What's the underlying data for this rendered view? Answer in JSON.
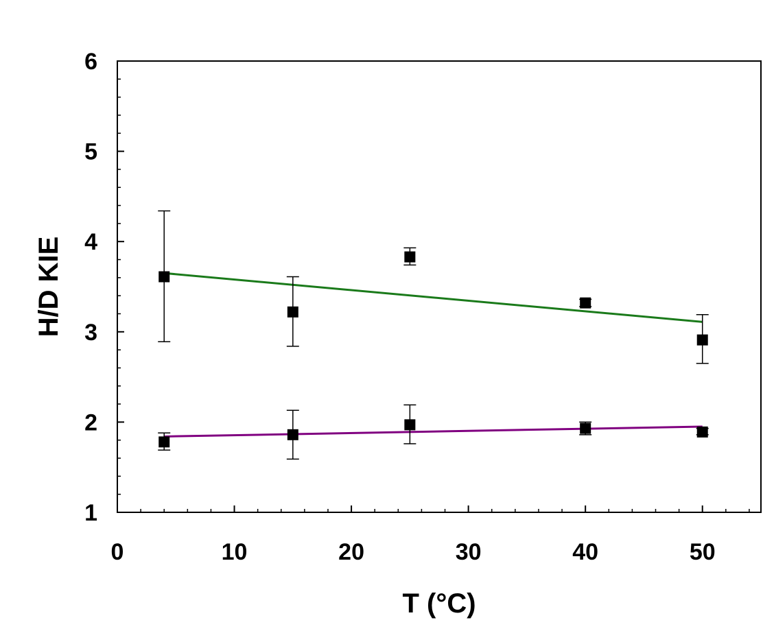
{
  "chart_data": {
    "type": "scatter",
    "xlabel": "T (°C)",
    "ylabel": "H/D KIE",
    "xlim": [
      0,
      55
    ],
    "ylim": [
      1,
      6
    ],
    "x_ticks": [
      0,
      10,
      20,
      30,
      40,
      50
    ],
    "y_ticks": [
      1,
      2,
      3,
      4,
      5,
      6
    ],
    "x_minor_step": 2,
    "y_minor_step": 0.2,
    "grid": false,
    "series": [
      {
        "points": [
          {
            "x": 4,
            "y": 3.61,
            "err_low": 2.89,
            "err_high": 4.34
          },
          {
            "x": 15,
            "y": 3.22,
            "err_low": 2.84,
            "err_high": 3.61
          },
          {
            "x": 25,
            "y": 3.83,
            "err_low": 3.74,
            "err_high": 3.93
          },
          {
            "x": 40,
            "y": 3.32,
            "err_low": 3.28,
            "err_high": 3.36
          },
          {
            "x": 50,
            "y": 2.91,
            "err_low": 2.65,
            "err_high": 3.19
          }
        ],
        "fit": {
          "x": [
            4,
            50
          ],
          "y": [
            3.65,
            3.11
          ]
        },
        "fit_color": "#1a7a1a",
        "marker_color": "#000000"
      },
      {
        "points": [
          {
            "x": 4,
            "y": 1.78,
            "err_low": 1.69,
            "err_high": 1.88
          },
          {
            "x": 15,
            "y": 1.86,
            "err_low": 1.59,
            "err_high": 2.13
          },
          {
            "x": 25,
            "y": 1.97,
            "err_low": 1.76,
            "err_high": 2.19
          },
          {
            "x": 40,
            "y": 1.93,
            "err_low": 1.86,
            "err_high": 2.0
          },
          {
            "x": 50,
            "y": 1.89,
            "err_low": 1.86,
            "err_high": 1.93
          }
        ],
        "fit": {
          "x": [
            4,
            50
          ],
          "y": [
            1.84,
            1.95
          ]
        },
        "fit_color": "#800080",
        "marker_color": "#000000"
      }
    ]
  }
}
